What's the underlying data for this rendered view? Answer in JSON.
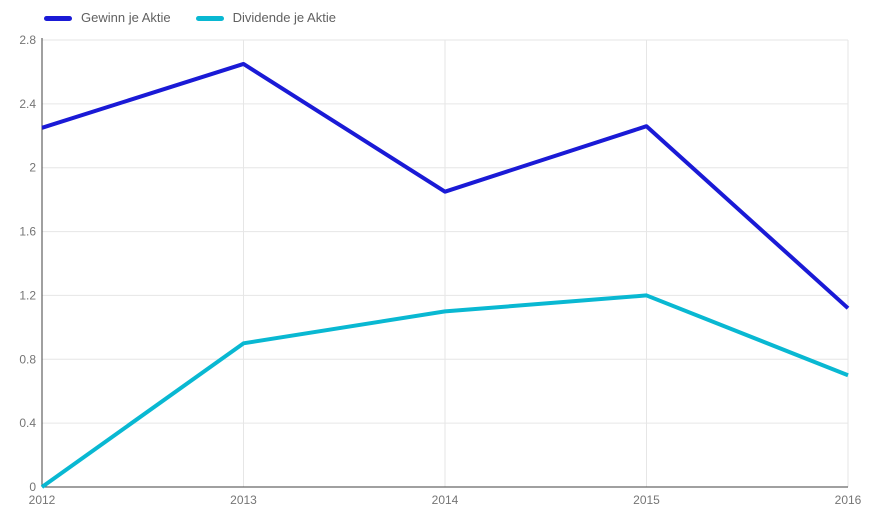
{
  "chart_data": {
    "type": "line",
    "title": "",
    "xlabel": "",
    "ylabel": "",
    "categories": [
      "2012",
      "2013",
      "2014",
      "2015",
      "2016"
    ],
    "series": [
      {
        "name": "Gewinn je Aktie",
        "color": "#1a1ad6",
        "values": [
          2.25,
          2.65,
          1.85,
          2.26,
          1.12
        ]
      },
      {
        "name": "Dividende je Aktie",
        "color": "#09b8d2",
        "values": [
          0,
          0.9,
          1.1,
          1.2,
          0.7
        ]
      }
    ],
    "ylim": [
      0,
      2.8
    ],
    "y_ticks": [
      0,
      0.4,
      0.8,
      1.2,
      1.6,
      2,
      2.4,
      2.8
    ],
    "y_tick_labels": [
      "0",
      "0.4",
      "0.8",
      "1.2",
      "1.6",
      "2",
      "2.4",
      "2.8"
    ],
    "grid": true,
    "legend_position": "top"
  },
  "styles": {
    "background": "#ffffff",
    "gridline_color": "#e6e6e6",
    "axis_color": "#424242",
    "tick_label_color": "#757575",
    "legend_text_color": "#616161",
    "line_width": 4
  }
}
